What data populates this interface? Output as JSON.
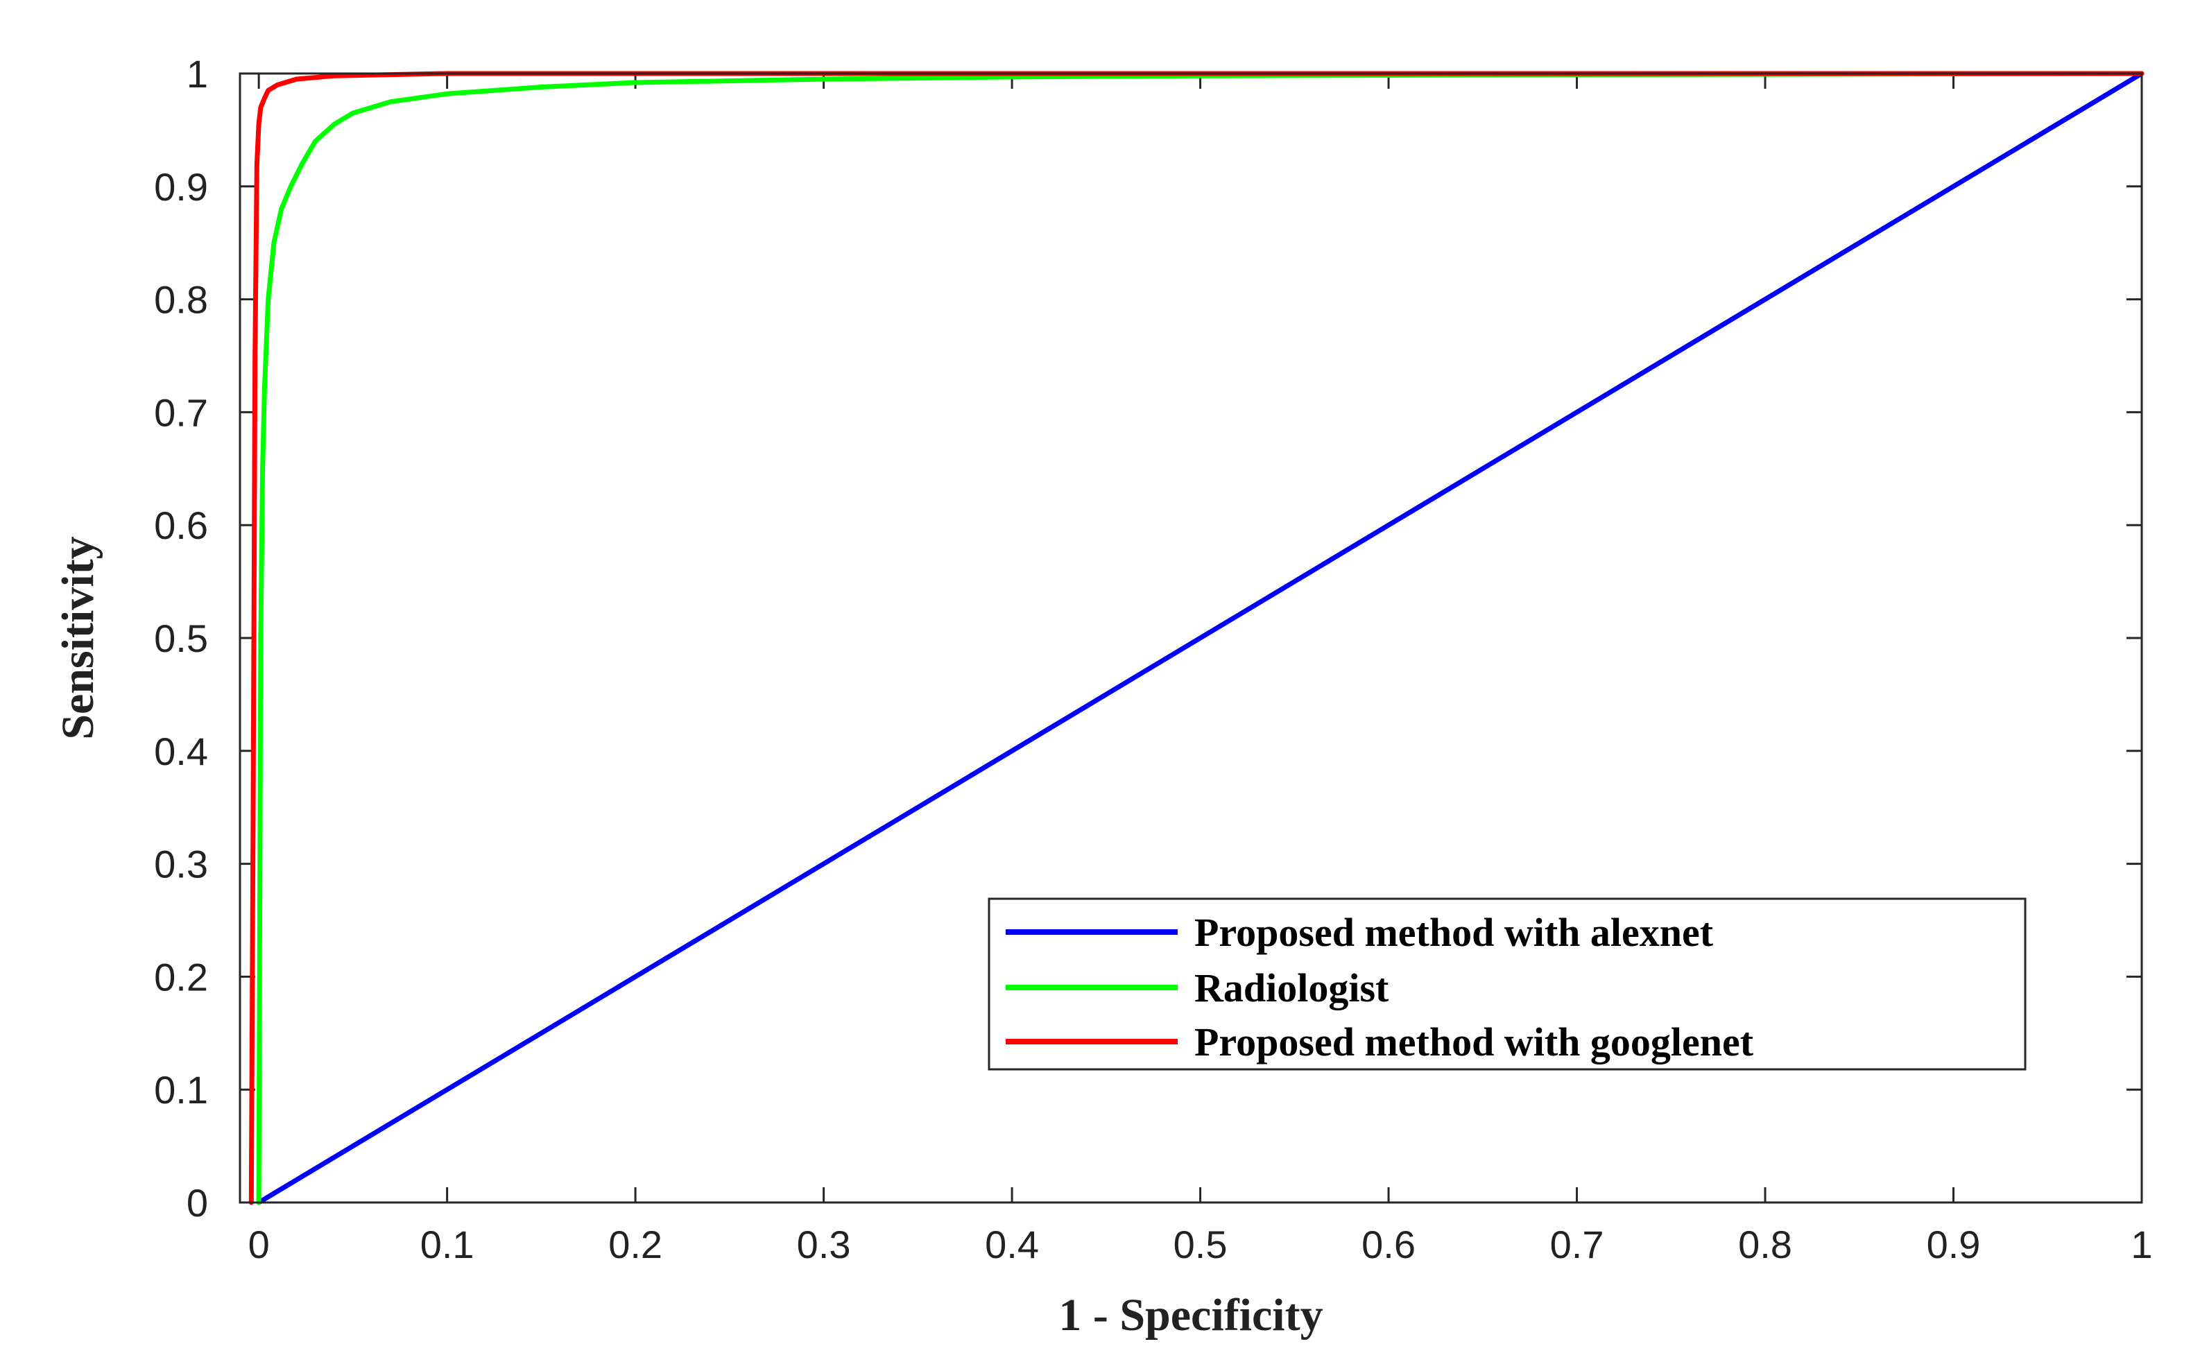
{
  "chart_data": {
    "type": "line",
    "title": "",
    "xlabel": "1 - Specificity",
    "ylabel": "Sensitivity",
    "xlim": [
      -0.01,
      1
    ],
    "ylim": [
      0,
      1
    ],
    "grid": false,
    "legend_position": "bottom-right",
    "xticks": [
      0,
      0.1,
      0.2,
      0.3,
      0.4,
      0.5,
      0.6,
      0.7,
      0.8,
      0.9,
      1
    ],
    "xtick_labels": [
      "0",
      "0.1",
      "0.2",
      "0.3",
      "0.4",
      "0.5",
      "0.6",
      "0.7",
      "0.8",
      "0.9",
      "1"
    ],
    "yticks": [
      0,
      0.1,
      0.2,
      0.3,
      0.4,
      0.5,
      0.6,
      0.7,
      0.8,
      0.9,
      1
    ],
    "ytick_labels": [
      "0",
      "0.1",
      "0.2",
      "0.3",
      "0.4",
      "0.5",
      "0.6",
      "0.7",
      "0.8",
      "0.9",
      "1"
    ],
    "series": [
      {
        "name": "Proposed method with alexnet",
        "color": "#0000ff",
        "x": [
          0,
          1
        ],
        "y": [
          0,
          1
        ]
      },
      {
        "name": "Radiologist",
        "color": "#00ff00",
        "x": [
          0,
          0.001,
          0.002,
          0.003,
          0.005,
          0.008,
          0.012,
          0.017,
          0.023,
          0.03,
          0.04,
          0.05,
          0.07,
          0.1,
          0.15,
          0.2,
          0.3,
          0.4,
          0.5,
          0.7,
          1
        ],
        "y": [
          0,
          0.5,
          0.65,
          0.72,
          0.8,
          0.85,
          0.88,
          0.9,
          0.92,
          0.94,
          0.955,
          0.965,
          0.975,
          0.982,
          0.988,
          0.992,
          0.995,
          0.997,
          0.998,
          0.999,
          1
        ]
      },
      {
        "name": "Proposed method with googlenet",
        "color": "#ff0000",
        "x": [
          -0.004,
          -0.003,
          -0.002,
          -0.001,
          0,
          0.001,
          0.003,
          0.005,
          0.01,
          0.02,
          0.04,
          0.07,
          0.1,
          0.2,
          0.4,
          0.6,
          0.8,
          1
        ],
        "y": [
          0,
          0.35,
          0.75,
          0.92,
          0.955,
          0.97,
          0.978,
          0.985,
          0.99,
          0.995,
          0.998,
          0.999,
          1,
          1,
          1,
          1,
          1,
          1
        ]
      }
    ]
  }
}
